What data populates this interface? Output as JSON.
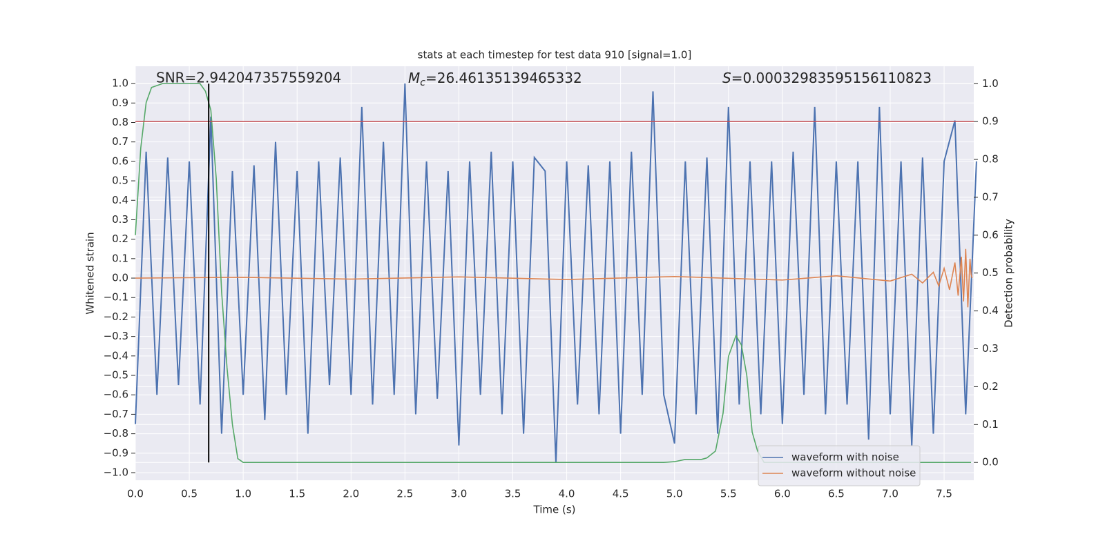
{
  "chart_data": {
    "type": "line",
    "title": "stats at each timestep for test data 910 [signal=1.0]",
    "x_label": "Time (s)",
    "y_label": "Whitened strain",
    "y2_label": "Detection probability",
    "annotations": {
      "snr": "SNR=2.942047357559204",
      "mc_symbol": "M",
      "mc_sub": "c",
      "mc_text": "=26.46135139465332",
      "s_symbol": "S",
      "s_text": "=0.00032983595156110823"
    },
    "xlim": [
      0,
      7.775
    ],
    "ylim": [
      -1.039,
      1.089
    ],
    "y2lim": [
      -0.047,
      1.046
    ],
    "xticks": [
      {
        "value": 0,
        "label": "0.0"
      },
      0.5,
      {
        "value": 1,
        "label": "1.0"
      },
      1.5,
      {
        "value": 2,
        "label": "2.0"
      },
      2.5,
      {
        "value": 3,
        "label": "3.0"
      },
      3.5,
      {
        "value": 4,
        "label": "4.0"
      },
      4.5,
      {
        "value": 5,
        "label": "5.0"
      },
      5.5,
      {
        "value": 6,
        "label": "6.0"
      },
      6.5,
      {
        "value": 7,
        "label": "7.0"
      },
      7.5
    ],
    "yticks": [
      {
        "value": -1,
        "label": "−1.0"
      },
      {
        "value": -0.9,
        "label": "−0.9"
      },
      {
        "value": -0.8,
        "label": "−0.8"
      },
      {
        "value": -0.7,
        "label": "−0.7"
      },
      {
        "value": -0.6,
        "label": "−0.6"
      },
      {
        "value": -0.5,
        "label": "−0.5"
      },
      {
        "value": -0.4,
        "label": "−0.4"
      },
      {
        "value": -0.3,
        "label": "−0.3"
      },
      {
        "value": -0.2,
        "label": "−0.2"
      },
      {
        "value": -0.1,
        "label": "−0.1"
      },
      {
        "value": 0,
        "label": "0.0"
      },
      0.1,
      0.2,
      0.3,
      0.4,
      0.5,
      0.6,
      0.7,
      0.8,
      0.9,
      {
        "value": 1,
        "label": "1.0"
      }
    ],
    "y2ticks": [
      {
        "value": 0,
        "label": "0.0"
      },
      0.1,
      0.2,
      0.3,
      0.4,
      0.5,
      0.6,
      0.7,
      0.8,
      0.9,
      {
        "value": 1,
        "label": "1.0"
      }
    ],
    "grid": true,
    "legend": "lower right",
    "series": [
      {
        "name": "waveform with noise",
        "color": "#4c72b0",
        "x": [
          0.0,
          0.1,
          0.2,
          0.3,
          0.4,
          0.5,
          0.6,
          0.7,
          0.8,
          0.9,
          1.0,
          1.1,
          1.2,
          1.3,
          1.4,
          1.5,
          1.6,
          1.7,
          1.8,
          1.9,
          2.0,
          2.1,
          2.2,
          2.3,
          2.4,
          2.5,
          2.6,
          2.7,
          2.8,
          2.9,
          3.0,
          3.1,
          3.2,
          3.3,
          3.4,
          3.5,
          3.6,
          3.7,
          3.8,
          3.9,
          4.0,
          4.1,
          4.2,
          4.3,
          4.4,
          4.5,
          4.6,
          4.7,
          4.8,
          4.9,
          5.0,
          5.1,
          5.2,
          5.3,
          5.4,
          5.5,
          5.6,
          5.7,
          5.8,
          5.9,
          6.0,
          6.1,
          6.2,
          6.3,
          6.4,
          6.5,
          6.6,
          6.7,
          6.8,
          6.9,
          7.0,
          7.1,
          7.2,
          7.3,
          7.4,
          7.5,
          7.6,
          7.7,
          7.8
        ],
        "values": [
          -0.75,
          0.65,
          -0.6,
          0.62,
          -0.55,
          0.6,
          -0.65,
          0.83,
          -0.8,
          0.55,
          -0.6,
          0.58,
          -0.73,
          0.7,
          -0.6,
          0.55,
          -0.8,
          0.6,
          -0.55,
          0.62,
          -0.6,
          0.88,
          -0.65,
          0.7,
          -0.6,
          1.0,
          -0.7,
          0.6,
          -0.62,
          0.55,
          -0.86,
          0.6,
          -0.6,
          0.65,
          -0.7,
          0.6,
          -0.8,
          0.62,
          0.55,
          -0.95,
          0.6,
          -0.65,
          0.58,
          -0.7,
          0.6,
          -0.8,
          0.65,
          -0.6,
          0.96,
          -0.6,
          -0.85,
          0.6,
          -0.7,
          0.62,
          -0.8,
          0.88,
          -0.65,
          0.6,
          -0.7,
          0.6,
          -0.75,
          0.65,
          -0.6,
          0.88,
          -0.7,
          0.6,
          -0.65,
          0.6,
          -0.83,
          0.88,
          -0.7,
          0.6,
          -0.86,
          0.62,
          -0.8,
          0.6,
          0.81,
          -0.7,
          0.6
        ]
      },
      {
        "name": "waveform without noise",
        "color": "#dd8452",
        "x": [
          0.0,
          1.0,
          2.0,
          3.0,
          4.0,
          5.0,
          6.0,
          6.5,
          7.0,
          7.2,
          7.3,
          7.4,
          7.45,
          7.5,
          7.55,
          7.6,
          7.63,
          7.66,
          7.68,
          7.7,
          7.72,
          7.74,
          7.75,
          7.76
        ],
        "values": [
          0,
          0.004,
          -0.005,
          0.006,
          -0.007,
          0.008,
          -0.01,
          0.012,
          -0.015,
          0.02,
          -0.025,
          0.03,
          -0.04,
          0.05,
          -0.06,
          0.08,
          -0.09,
          0.11,
          -0.12,
          0.15,
          -0.15,
          0.1,
          0.02,
          0
        ]
      },
      {
        "color": "#55a868",
        "axis": "y2",
        "x": [
          0,
          0.05,
          0.1,
          0.15,
          0.25,
          0.4,
          0.6,
          0.65,
          0.7,
          0.75,
          0.8,
          0.85,
          0.9,
          0.95,
          1.0,
          2.0,
          3.0,
          4.0,
          4.9,
          5.0,
          5.1,
          5.25,
          5.3,
          5.38,
          5.45,
          5.5,
          5.57,
          5.62,
          5.67,
          5.72,
          5.77,
          5.83,
          7.75
        ],
        "values": [
          0.6,
          0.83,
          0.95,
          0.99,
          1.0,
          1.0,
          1.0,
          0.98,
          0.93,
          0.75,
          0.45,
          0.25,
          0.1,
          0.01,
          0.0,
          0.0,
          0.0,
          0.0,
          0.0,
          0.002,
          0.008,
          0.008,
          0.012,
          0.03,
          0.13,
          0.28,
          0.335,
          0.31,
          0.23,
          0.08,
          0.03,
          0.0,
          0.0
        ]
      }
    ],
    "hlines": [
      {
        "value": 0.9,
        "axis": "y2",
        "color": "#c44e52"
      }
    ],
    "vlines": [
      {
        "value": 0.68,
        "span": [
          0,
          1
        ],
        "axis": "y2",
        "color": "#000000"
      }
    ]
  }
}
